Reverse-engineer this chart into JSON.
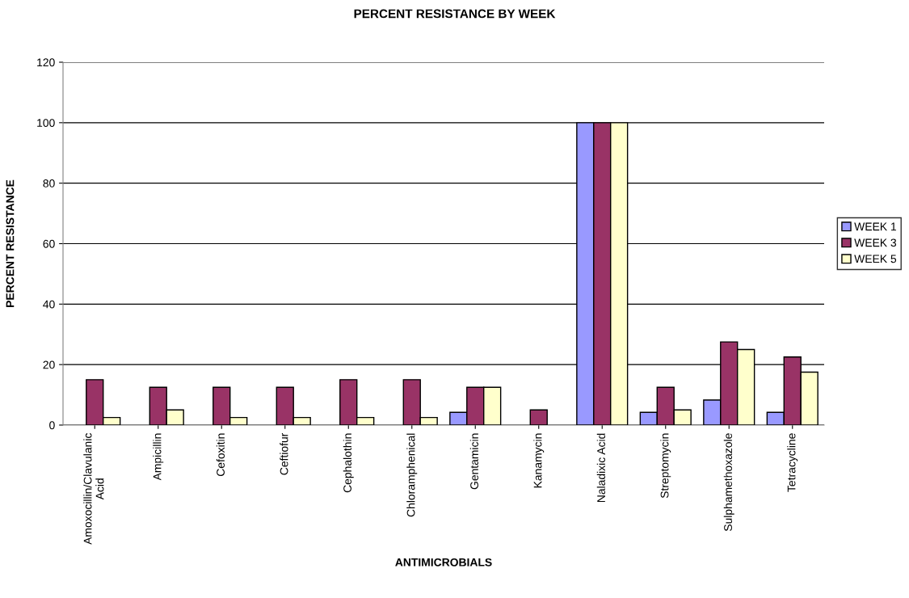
{
  "chart_data": {
    "type": "bar",
    "title": "PERCENT RESISTANCE BY WEEK",
    "xlabel": "ANTIMICROBIALS",
    "ylabel": "PERCENT RESISTANCE",
    "categories": [
      "Amoxocillin/Clavulanic\nAcid",
      "Ampicillin",
      "Cefoxitin",
      "Ceftiofur",
      "Cephalothin",
      "Chloramphenical",
      "Gentamicin",
      "Kanamycin",
      "Naladixic Acid",
      "Streptomycin",
      "Sulphamethoxazole",
      "Tetracycline"
    ],
    "series": [
      {
        "name": "WEEK 1",
        "color": "#9999ff",
        "values": [
          null,
          null,
          null,
          null,
          null,
          null,
          4.2,
          null,
          100,
          4.2,
          8.3,
          4.2
        ]
      },
      {
        "name": "WEEK 3",
        "color": "#993366",
        "values": [
          15,
          12.5,
          12.5,
          12.5,
          15,
          15,
          12.5,
          5,
          100,
          12.5,
          27.5,
          22.5
        ]
      },
      {
        "name": "WEEK 5",
        "color": "#ffffcc",
        "values": [
          2.5,
          5,
          2.5,
          2.5,
          2.5,
          2.5,
          12.5,
          null,
          100,
          5,
          25,
          17.5
        ]
      }
    ],
    "ylim": [
      0,
      120
    ],
    "yticks": [
      0,
      20,
      40,
      60,
      80,
      100,
      120
    ],
    "grid": "y",
    "legend": "right"
  }
}
